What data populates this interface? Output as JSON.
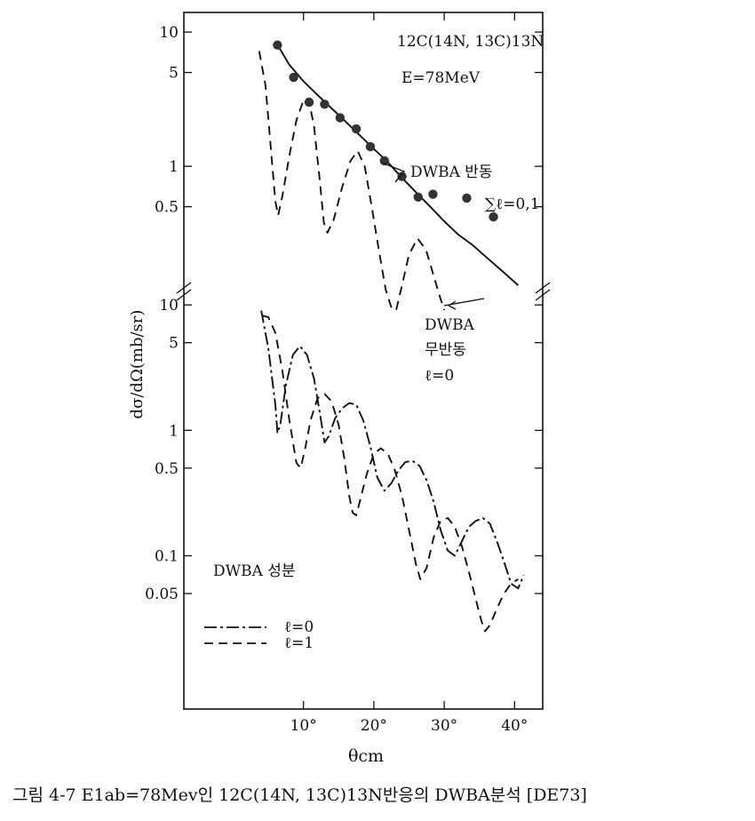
{
  "chart_data": {
    "type": "line",
    "xlabel": "θcm",
    "ylabel": "dσ/dΩ(mb/sr)",
    "x_unit": "degrees",
    "xlim": [
      -7,
      44
    ],
    "xticks": [
      10,
      20,
      30,
      40
    ],
    "xtick_labels": [
      "10°",
      "20°",
      "30°",
      "40°"
    ],
    "caption": "그림 4-7  E1ab=78Mev인 12C(14N, 13C)13N반응의 DWBA분석 [DE73]",
    "panels": [
      {
        "position": "upper",
        "yscale": "log",
        "ylim": [
          0.11,
          14
        ],
        "yticks": [
          0.5,
          1,
          5,
          10
        ],
        "ytick_labels": [
          "0.5",
          "1",
          "5",
          "10"
        ],
        "title": "12C(14N, 13C)13N",
        "subtitle": "E=78MeV",
        "points": {
          "x": [
            6.3,
            8.6,
            10.8,
            13.0,
            15.2,
            17.5,
            19.5,
            21.5,
            24.0,
            26.3,
            28.4,
            33.2,
            37.0
          ],
          "y": [
            8.0,
            4.6,
            3.0,
            2.9,
            2.3,
            1.9,
            1.4,
            1.1,
            0.84,
            0.59,
            0.62,
            0.58,
            0.42
          ]
        },
        "series": [
          {
            "label": "DWBA 반동",
            "label2": "∑ℓ=0,1",
            "style": "solid",
            "x": [
              6.2,
              8,
              10,
              12,
              14,
              16,
              18,
              20,
              22,
              24,
              26,
              28,
              30,
              32,
              34,
              36,
              38,
              40.5
            ],
            "y": [
              8.2,
              5.7,
              4.3,
              3.4,
              2.7,
              2.15,
              1.7,
              1.35,
              1.07,
              0.82,
              0.64,
              0.5,
              0.39,
              0.31,
              0.26,
              0.21,
              0.17,
              0.13
            ]
          },
          {
            "label": "DWBA",
            "label2": "무반동",
            "label3": "ℓ=0",
            "style": "dashed",
            "x": [
              3.7,
              4.6,
              5.4,
              6.0,
              6.4,
              7.0,
              8.0,
              9.0,
              10.0,
              10.7,
              11.5,
              12.3,
              12.9,
              13.4,
              14.3,
              15.5,
              16.7,
              17.7,
              18.7,
              19.7,
              20.7,
              21.7,
              22.6,
              23.2,
              24.0,
              25.0,
              26.2,
              27.4,
              28.4,
              29.3,
              30.0
            ],
            "y": [
              7.2,
              4.0,
              1.3,
              0.55,
              0.43,
              0.6,
              1.2,
              2.2,
              3.1,
              3.2,
              2.0,
              0.8,
              0.38,
              0.32,
              0.4,
              0.7,
              1.1,
              1.3,
              1.0,
              0.5,
              0.24,
              0.12,
              0.085,
              0.086,
              0.13,
              0.22,
              0.29,
              0.24,
              0.16,
              0.11,
              0.085
            ]
          }
        ]
      },
      {
        "position": "lower",
        "yscale": "log",
        "ylim": [
          0.006,
          12
        ],
        "yticks": [
          0.05,
          0.1,
          0.5,
          1,
          5,
          10
        ],
        "ytick_labels": [
          "0.05",
          "0.1",
          "0.5",
          "1",
          "5",
          "10"
        ],
        "legend_title": "DWBA 성분",
        "legend_position": "lower-left",
        "series": [
          {
            "name": "ℓ=0",
            "style": "dashdot",
            "x": [
              4.0,
              5.0,
              6.0,
              6.3,
              6.7,
              7.5,
              8.5,
              9.5,
              10.5,
              11.5,
              12.3,
              13.0,
              13.6,
              14.5,
              15.5,
              16.5,
              17.5,
              18.5,
              19.5,
              20.5,
              21.5,
              22.5,
              23.5,
              24.5,
              25.5,
              26.5,
              27.5,
              28.5,
              29.5,
              30.5,
              31.5,
              32.5,
              33.5,
              34.5,
              35.5,
              36.5,
              37.5,
              38.5,
              39.5,
              40.5,
              41.3
            ],
            "y": [
              9.0,
              4.5,
              1.6,
              0.95,
              1.1,
              2.3,
              4.0,
              4.7,
              4.0,
              2.6,
              1.4,
              0.8,
              0.9,
              1.25,
              1.5,
              1.65,
              1.6,
              1.2,
              0.75,
              0.42,
              0.33,
              0.38,
              0.48,
              0.56,
              0.57,
              0.52,
              0.4,
              0.27,
              0.16,
              0.11,
              0.1,
              0.13,
              0.17,
              0.19,
              0.2,
              0.18,
              0.13,
              0.09,
              0.06,
              0.055,
              0.07
            ]
          },
          {
            "name": "ℓ=1",
            "style": "dashed",
            "x": [
              4.2,
              5.0,
              6.0,
              7.0,
              8.0,
              9.0,
              9.6,
              10.2,
              11.0,
              12.0,
              13.0,
              14.0,
              15.0,
              15.8,
              16.5,
              17.0,
              17.5,
              18.0,
              19.0,
              20.0,
              21.0,
              22.0,
              23.0,
              24.0,
              25.0,
              26.0,
              26.6,
              27.5,
              28.5,
              29.5,
              30.5,
              31.5,
              32.5,
              33.5,
              34.5,
              35.3,
              35.8,
              36.5,
              37.5,
              38.5,
              39.5,
              40.5
            ],
            "y": [
              8.2,
              8.0,
              6.0,
              3.0,
              1.2,
              0.55,
              0.5,
              0.7,
              1.2,
              1.8,
              1.95,
              1.7,
              1.1,
              0.6,
              0.3,
              0.22,
              0.21,
              0.27,
              0.45,
              0.65,
              0.72,
              0.65,
              0.48,
              0.3,
              0.16,
              0.085,
              0.065,
              0.08,
              0.14,
              0.19,
              0.2,
              0.17,
              0.12,
              0.075,
              0.045,
              0.03,
              0.025,
              0.028,
              0.038,
              0.05,
              0.06,
              0.065
            ]
          }
        ]
      }
    ]
  }
}
